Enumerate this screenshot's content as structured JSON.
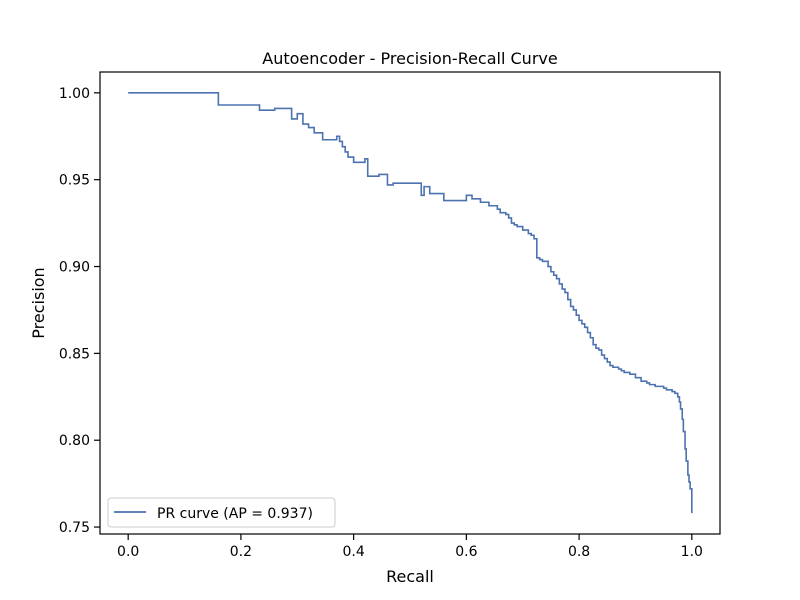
{
  "chart_data": {
    "type": "line",
    "title": "Autoencoder - Precision-Recall Curve",
    "xlabel": "Recall",
    "ylabel": "Precision",
    "xlim": [
      -0.05,
      1.05
    ],
    "ylim": [
      0.746,
      1.012
    ],
    "xticks": [
      0.0,
      0.2,
      0.4,
      0.6,
      0.8,
      1.0
    ],
    "xtick_labels": [
      "0.0",
      "0.2",
      "0.4",
      "0.6",
      "0.8",
      "1.0"
    ],
    "yticks": [
      0.75,
      0.8,
      0.85,
      0.9,
      0.95,
      1.0
    ],
    "ytick_labels": [
      "0.75",
      "0.80",
      "0.85",
      "0.90",
      "0.95",
      "1.00"
    ],
    "grid": false,
    "legend": {
      "position": "lower-left"
    },
    "series": [
      {
        "name": "PR curve (AP = 0.937)",
        "color": "#4c72b0",
        "step": true,
        "x": [
          0.0,
          0.16,
          0.233,
          0.26,
          0.29,
          0.3,
          0.31,
          0.32,
          0.33,
          0.345,
          0.37,
          0.375,
          0.38,
          0.385,
          0.39,
          0.4,
          0.42,
          0.425,
          0.445,
          0.46,
          0.47,
          0.52,
          0.525,
          0.535,
          0.56,
          0.6,
          0.61,
          0.625,
          0.64,
          0.655,
          0.66,
          0.67,
          0.675,
          0.68,
          0.685,
          0.69,
          0.7,
          0.71,
          0.715,
          0.72,
          0.725,
          0.73,
          0.735,
          0.745,
          0.75,
          0.755,
          0.76,
          0.765,
          0.77,
          0.775,
          0.78,
          0.785,
          0.79,
          0.795,
          0.8,
          0.805,
          0.81,
          0.815,
          0.82,
          0.825,
          0.83,
          0.835,
          0.84,
          0.845,
          0.85,
          0.855,
          0.86,
          0.87,
          0.875,
          0.88,
          0.89,
          0.9,
          0.91,
          0.92,
          0.925,
          0.935,
          0.95,
          0.955,
          0.965,
          0.97,
          0.975,
          0.978,
          0.98,
          0.983,
          0.985,
          0.988,
          0.99,
          0.993,
          0.995,
          0.997,
          1.0
        ],
        "y": [
          1.0,
          0.993,
          0.99,
          0.991,
          0.985,
          0.988,
          0.982,
          0.98,
          0.977,
          0.973,
          0.975,
          0.972,
          0.969,
          0.966,
          0.963,
          0.96,
          0.962,
          0.952,
          0.953,
          0.947,
          0.948,
          0.941,
          0.946,
          0.942,
          0.938,
          0.941,
          0.939,
          0.937,
          0.935,
          0.933,
          0.931,
          0.93,
          0.928,
          0.925,
          0.924,
          0.923,
          0.921,
          0.919,
          0.918,
          0.916,
          0.905,
          0.904,
          0.903,
          0.9,
          0.897,
          0.895,
          0.893,
          0.89,
          0.887,
          0.885,
          0.881,
          0.877,
          0.875,
          0.872,
          0.869,
          0.867,
          0.865,
          0.862,
          0.859,
          0.855,
          0.853,
          0.852,
          0.849,
          0.847,
          0.845,
          0.843,
          0.842,
          0.841,
          0.84,
          0.839,
          0.838,
          0.836,
          0.834,
          0.833,
          0.832,
          0.831,
          0.83,
          0.829,
          0.828,
          0.827,
          0.825,
          0.822,
          0.818,
          0.812,
          0.805,
          0.795,
          0.788,
          0.78,
          0.776,
          0.772,
          0.758
        ]
      }
    ]
  }
}
